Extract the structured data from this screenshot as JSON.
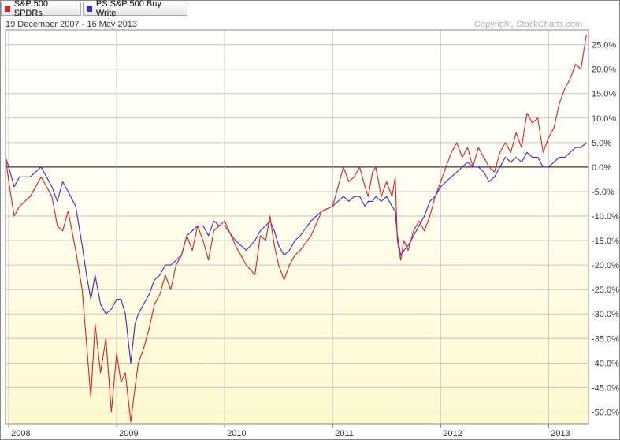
{
  "legend": {
    "items": [
      {
        "label": "S&P 500 SPDRs",
        "color": "#e02020"
      },
      {
        "label": "PS S&P 500 Buy Write",
        "color": "#3a2ab8"
      }
    ]
  },
  "header": {
    "date_range": "19 December 2007 - 16 May 2013",
    "copyright": "Copyright, StockCharts.com"
  },
  "chart_data": {
    "type": "line",
    "y_unit": "%",
    "ylim": [
      -52.5,
      28
    ],
    "yticks": [
      25,
      20,
      15,
      10,
      5,
      0,
      -5,
      -10,
      -15,
      -20,
      -25,
      -30,
      -35,
      -40,
      -45,
      -50
    ],
    "ytick_labels": [
      "25.0%",
      "20.0%",
      "15.0%",
      "10.0%",
      "5.0%",
      "0.0%",
      "-5.0%",
      "-10.0%",
      "-15.0%",
      "-20.0%",
      "-25.0%",
      "-30.0%",
      "-35.0%",
      "-40.0%",
      "-45.0%",
      "-50.0%"
    ],
    "xlim": [
      2007.97,
      2013.37
    ],
    "xticks": [
      2008,
      2009,
      2010,
      2011,
      2012,
      2013
    ],
    "xtick_labels": [
      "2008",
      "2009",
      "2010",
      "2011",
      "2012",
      "2013"
    ],
    "grid": true,
    "legend_position": "top-left",
    "x": [
      2007.97,
      2008.0,
      2008.05,
      2008.1,
      2008.2,
      2008.3,
      2008.4,
      2008.45,
      2008.5,
      2008.55,
      2008.62,
      2008.68,
      2008.72,
      2008.76,
      2008.8,
      2008.85,
      2008.9,
      2008.95,
      2009.0,
      2009.04,
      2009.08,
      2009.13,
      2009.17,
      2009.2,
      2009.25,
      2009.3,
      2009.35,
      2009.4,
      2009.45,
      2009.5,
      2009.55,
      2009.6,
      2009.65,
      2009.7,
      2009.75,
      2009.8,
      2009.85,
      2009.9,
      2009.95,
      2010.0,
      2010.1,
      2010.2,
      2010.28,
      2010.33,
      2010.38,
      2010.42,
      2010.46,
      2010.5,
      2010.55,
      2010.6,
      2010.65,
      2010.7,
      2010.8,
      2010.9,
      2011.0,
      2011.05,
      2011.1,
      2011.15,
      2011.2,
      2011.25,
      2011.3,
      2011.33,
      2011.37,
      2011.4,
      2011.45,
      2011.5,
      2011.55,
      2011.58,
      2011.6,
      2011.63,
      2011.66,
      2011.7,
      2011.75,
      2011.8,
      2011.85,
      2011.9,
      2011.95,
      2012.0,
      2012.05,
      2012.1,
      2012.15,
      2012.2,
      2012.25,
      2012.3,
      2012.35,
      2012.4,
      2012.45,
      2012.5,
      2012.55,
      2012.6,
      2012.65,
      2012.7,
      2012.75,
      2012.8,
      2012.85,
      2012.9,
      2012.95,
      2013.0,
      2013.05,
      2013.1,
      2013.15,
      2013.2,
      2013.25,
      2013.3,
      2013.35
    ],
    "series": [
      {
        "name": "S&P 500 SPDRs",
        "color": "#e02020",
        "values": [
          2,
          -3,
          -10,
          -8,
          -6,
          -2,
          -6,
          -12,
          -13,
          -9,
          -17,
          -25,
          -36,
          -47,
          -32,
          -42,
          -35,
          -50,
          -38,
          -44,
          -42,
          -52,
          -45,
          -40,
          -37,
          -33,
          -28,
          -26,
          -22,
          -25,
          -20,
          -18,
          -14,
          -17,
          -12,
          -15,
          -19,
          -13,
          -12,
          -11,
          -16,
          -20,
          -22,
          -14,
          -15,
          -10,
          -16,
          -20,
          -23,
          -20,
          -18,
          -17,
          -14,
          -9,
          -8,
          -4,
          0,
          -3,
          -2,
          0,
          -4,
          -6,
          -1,
          0,
          -6,
          -3,
          -6,
          -2,
          -15,
          -19,
          -15,
          -17,
          -13,
          -11,
          -13,
          -10,
          -6,
          -3,
          0,
          3,
          5,
          2,
          4,
          0,
          4,
          2,
          0,
          -1,
          3,
          5,
          3,
          7,
          4,
          11,
          9,
          10,
          3,
          6,
          8,
          13,
          16,
          18,
          21,
          20,
          27
        ]
      },
      {
        "name": "PS S&P 500 Buy Write",
        "color": "#3a2ab8",
        "values": [
          2,
          0,
          -4,
          -2,
          -2,
          0,
          -4,
          -7,
          -3,
          -5,
          -8,
          -16,
          -22,
          -27,
          -22,
          -28,
          -30,
          -29,
          -27,
          -27,
          -30,
          -40,
          -32,
          -30,
          -28,
          -26,
          -23,
          -22,
          -20,
          -20,
          -19,
          -18,
          -14,
          -13,
          -12,
          -12,
          -14,
          -11,
          -12,
          -12,
          -15,
          -17,
          -15,
          -13,
          -12,
          -11,
          -13,
          -16,
          -18,
          -17,
          -15,
          -14,
          -11,
          -9,
          -8,
          -7,
          -6,
          -7,
          -6,
          -6,
          -8,
          -7,
          -7,
          -6,
          -7,
          -6,
          -8,
          -9,
          -14,
          -18,
          -17,
          -16,
          -14,
          -12,
          -10,
          -7,
          -6,
          -4,
          -3,
          -2,
          -1,
          0,
          1,
          0,
          0,
          -1,
          -3,
          -2,
          0,
          2,
          1,
          2,
          1,
          3,
          2,
          2,
          0,
          0,
          1,
          2,
          2,
          3,
          4,
          4,
          5
        ]
      }
    ]
  }
}
